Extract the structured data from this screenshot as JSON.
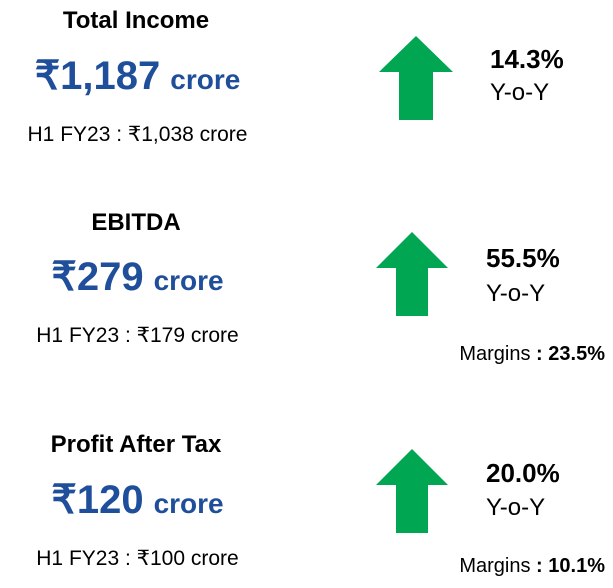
{
  "colors": {
    "value_blue": "#1f4e9a",
    "arrow_green": "#00a651"
  },
  "metrics": [
    {
      "title": "Total Income",
      "value": "₹1,187",
      "unit": "crore",
      "previous": "H1 FY23 : ₹1,038 crore",
      "growth": "14.3%",
      "growth_label": "Y-o-Y",
      "trend_icon": "up-arrow-icon"
    },
    {
      "title": "EBITDA",
      "value": "₹279",
      "unit": "crore",
      "previous": "H1 FY23 : ₹179 crore",
      "growth": "55.5%",
      "growth_label": "Y-o-Y",
      "margins_label": "Margins",
      "margins_sep": ":",
      "margins_value": "23.5%",
      "trend_icon": "up-arrow-icon"
    },
    {
      "title": "Profit After Tax",
      "value": "₹120",
      "unit": "crore",
      "previous": "H1 FY23 : ₹100 crore",
      "growth": "20.0%",
      "growth_label": "Y-o-Y",
      "margins_label": "Margins",
      "margins_sep": ":",
      "margins_value": "10.1%",
      "trend_icon": "up-arrow-icon"
    }
  ]
}
